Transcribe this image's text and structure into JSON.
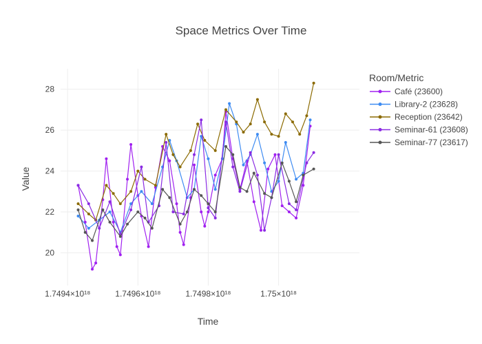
{
  "chart_data": {
    "type": "line",
    "title": "Space Metrics Over Time",
    "xlabel": "Time",
    "ylabel": "Value",
    "xlim": [
      1.74938e+18,
      1.75023e+18
    ],
    "ylim": [
      18.4,
      29.0
    ],
    "x_ticks": [
      {
        "value": 1.7494e+18,
        "label": "1.7494×10¹⁸"
      },
      {
        "value": 1.7496e+18,
        "label": "1.7496×10¹⁸"
      },
      {
        "value": 1.7498e+18,
        "label": "1.7498×10¹⁸"
      },
      {
        "value": 1.75e+18,
        "label": "1.75×10¹⁸"
      }
    ],
    "y_ticks": [
      20,
      22,
      24,
      26,
      28
    ],
    "grid": true,
    "legend": {
      "title": "Room/Metric",
      "position": "right"
    },
    "series": [
      {
        "name": "Café (23600)",
        "color": "#a020f0",
        "points": [
          [
            1.74943e+18,
            23.3
          ],
          [
            1.74945e+18,
            21.5
          ],
          [
            1.74947e+18,
            19.2
          ],
          [
            1.74948e+18,
            19.5
          ],
          [
            1.7495e+18,
            22.6
          ],
          [
            1.74951e+18,
            24.6
          ],
          [
            1.74953e+18,
            21.5
          ],
          [
            1.74954e+18,
            20.3
          ],
          [
            1.74955e+18,
            19.9
          ],
          [
            1.74957e+18,
            23.6
          ],
          [
            1.74958e+18,
            25.3
          ],
          [
            1.7496e+18,
            22.8
          ],
          [
            1.74961e+18,
            21.8
          ],
          [
            1.74963e+18,
            20.3
          ],
          [
            1.74965e+18,
            23.2
          ],
          [
            1.74967e+18,
            25.2
          ],
          [
            1.74969e+18,
            24.5
          ],
          [
            1.74971e+18,
            22.4
          ],
          [
            1.74972e+18,
            21.0
          ],
          [
            1.74973e+18,
            20.4
          ],
          [
            1.74975e+18,
            22.7
          ],
          [
            1.74976e+18,
            24.3
          ],
          [
            1.74978e+18,
            22.0
          ],
          [
            1.74979e+18,
            21.3
          ],
          [
            1.7498e+18,
            22.0
          ],
          [
            1.74982e+18,
            23.8
          ],
          [
            1.74984e+18,
            24.6
          ],
          [
            1.74985e+18,
            26.9
          ],
          [
            1.74987e+18,
            24.6
          ],
          [
            1.74989e+18,
            23.1
          ],
          [
            1.74991e+18,
            24.5
          ],
          [
            1.74993e+18,
            22.5
          ],
          [
            1.74995e+18,
            21.1
          ],
          [
            1.74997e+18,
            24.1
          ],
          [
            1.74999e+18,
            24.8
          ],
          [
            1.75001e+18,
            22.3
          ],
          [
            1.75003e+18,
            22.0
          ],
          [
            1.75005e+18,
            21.7
          ],
          [
            1.75007e+18,
            23.3
          ],
          [
            1.75009e+18,
            26.2
          ]
        ]
      },
      {
        "name": "Library-2 (23628)",
        "color": "#3d8bf2",
        "points": [
          [
            1.74943e+18,
            21.8
          ],
          [
            1.74946e+18,
            21.2
          ],
          [
            1.74949e+18,
            21.6
          ],
          [
            1.74952e+18,
            22.0
          ],
          [
            1.74955e+18,
            21.0
          ],
          [
            1.74958e+18,
            22.4
          ],
          [
            1.74961e+18,
            23.0
          ],
          [
            1.74964e+18,
            22.4
          ],
          [
            1.74967e+18,
            24.2
          ],
          [
            1.74969e+18,
            25.5
          ],
          [
            1.74971e+18,
            24.5
          ],
          [
            1.74974e+18,
            22.7
          ],
          [
            1.74976e+18,
            23.1
          ],
          [
            1.74978e+18,
            25.7
          ],
          [
            1.7498e+18,
            24.6
          ],
          [
            1.74982e+18,
            23.1
          ],
          [
            1.74984e+18,
            24.6
          ],
          [
            1.74986e+18,
            27.3
          ],
          [
            1.74988e+18,
            26.3
          ],
          [
            1.7499e+18,
            24.3
          ],
          [
            1.74992e+18,
            24.8
          ],
          [
            1.74994e+18,
            25.8
          ],
          [
            1.74996e+18,
            24.4
          ],
          [
            1.74998e+18,
            23.0
          ],
          [
            1.75e+18,
            23.5
          ],
          [
            1.75002e+18,
            25.4
          ],
          [
            1.75005e+18,
            23.6
          ],
          [
            1.75007e+18,
            23.9
          ],
          [
            1.75009e+18,
            26.5
          ]
        ]
      },
      {
        "name": "Reception (23642)",
        "color": "#8b6a00",
        "points": [
          [
            1.74943e+18,
            22.4
          ],
          [
            1.74946e+18,
            21.9
          ],
          [
            1.74948e+18,
            21.6
          ],
          [
            1.74951e+18,
            23.3
          ],
          [
            1.74953e+18,
            22.9
          ],
          [
            1.74955e+18,
            22.4
          ],
          [
            1.74958e+18,
            23.0
          ],
          [
            1.7496e+18,
            24.0
          ],
          [
            1.74962e+18,
            23.6
          ],
          [
            1.74965e+18,
            23.3
          ],
          [
            1.74968e+18,
            25.8
          ],
          [
            1.7497e+18,
            24.8
          ],
          [
            1.74972e+18,
            24.2
          ],
          [
            1.74975e+18,
            25.0
          ],
          [
            1.74977e+18,
            26.3
          ],
          [
            1.74979e+18,
            25.5
          ],
          [
            1.74982e+18,
            25.0
          ],
          [
            1.74985e+18,
            27.0
          ],
          [
            1.74988e+18,
            26.4
          ],
          [
            1.7499e+18,
            25.9
          ],
          [
            1.74992e+18,
            26.3
          ],
          [
            1.74994e+18,
            27.5
          ],
          [
            1.74996e+18,
            26.4
          ],
          [
            1.74998e+18,
            25.8
          ],
          [
            1.75e+18,
            25.7
          ],
          [
            1.75002e+18,
            26.8
          ],
          [
            1.75004e+18,
            26.4
          ],
          [
            1.75006e+18,
            25.8
          ],
          [
            1.75008e+18,
            26.7
          ],
          [
            1.7501e+18,
            28.3
          ]
        ]
      },
      {
        "name": "Seminar-61 (23608)",
        "color": "#8a2be2",
        "points": [
          [
            1.74943e+18,
            23.3
          ],
          [
            1.74946e+18,
            22.4
          ],
          [
            1.74949e+18,
            21.2
          ],
          [
            1.74952e+18,
            22.5
          ],
          [
            1.74955e+18,
            20.9
          ],
          [
            1.74958e+18,
            22.1
          ],
          [
            1.74961e+18,
            24.2
          ],
          [
            1.74963e+18,
            21.5
          ],
          [
            1.74966e+18,
            22.3
          ],
          [
            1.74968e+18,
            25.4
          ],
          [
            1.7497e+18,
            22.0
          ],
          [
            1.74973e+18,
            21.9
          ],
          [
            1.74976e+18,
            24.8
          ],
          [
            1.74978e+18,
            26.5
          ],
          [
            1.7498e+18,
            22.2
          ],
          [
            1.74982e+18,
            21.7
          ],
          [
            1.74985e+18,
            26.4
          ],
          [
            1.74987e+18,
            24.2
          ],
          [
            1.74989e+18,
            23.0
          ],
          [
            1.74992e+18,
            24.9
          ],
          [
            1.74994e+18,
            23.8
          ],
          [
            1.74996e+18,
            21.1
          ],
          [
            1.74998e+18,
            22.7
          ],
          [
            1.75e+18,
            24.8
          ],
          [
            1.75003e+18,
            22.4
          ],
          [
            1.75005e+18,
            22.1
          ],
          [
            1.75008e+18,
            24.4
          ],
          [
            1.7501e+18,
            24.9
          ]
        ]
      },
      {
        "name": "Seminar-77 (23617)",
        "color": "#555555",
        "points": [
          [
            1.74943e+18,
            22.1
          ],
          [
            1.74945e+18,
            21.0
          ],
          [
            1.74947e+18,
            20.6
          ],
          [
            1.7495e+18,
            22.1
          ],
          [
            1.74952e+18,
            21.5
          ],
          [
            1.74955e+18,
            20.8
          ],
          [
            1.74957e+18,
            21.4
          ],
          [
            1.7496e+18,
            22.0
          ],
          [
            1.74962e+18,
            21.7
          ],
          [
            1.74964e+18,
            21.2
          ],
          [
            1.74967e+18,
            23.1
          ],
          [
            1.74969e+18,
            22.7
          ],
          [
            1.74972e+18,
            21.4
          ],
          [
            1.74974e+18,
            22.0
          ],
          [
            1.74976e+18,
            23.1
          ],
          [
            1.74978e+18,
            22.8
          ],
          [
            1.7498e+18,
            22.4
          ],
          [
            1.74982e+18,
            22.0
          ],
          [
            1.74985e+18,
            25.2
          ],
          [
            1.74987e+18,
            24.8
          ],
          [
            1.74989e+18,
            23.2
          ],
          [
            1.74991e+18,
            23.0
          ],
          [
            1.74993e+18,
            23.9
          ],
          [
            1.74996e+18,
            22.9
          ],
          [
            1.74998e+18,
            22.7
          ],
          [
            1.75001e+18,
            24.4
          ],
          [
            1.75003e+18,
            23.5
          ],
          [
            1.75005e+18,
            22.5
          ],
          [
            1.75007e+18,
            23.8
          ],
          [
            1.7501e+18,
            24.1
          ]
        ]
      }
    ]
  }
}
